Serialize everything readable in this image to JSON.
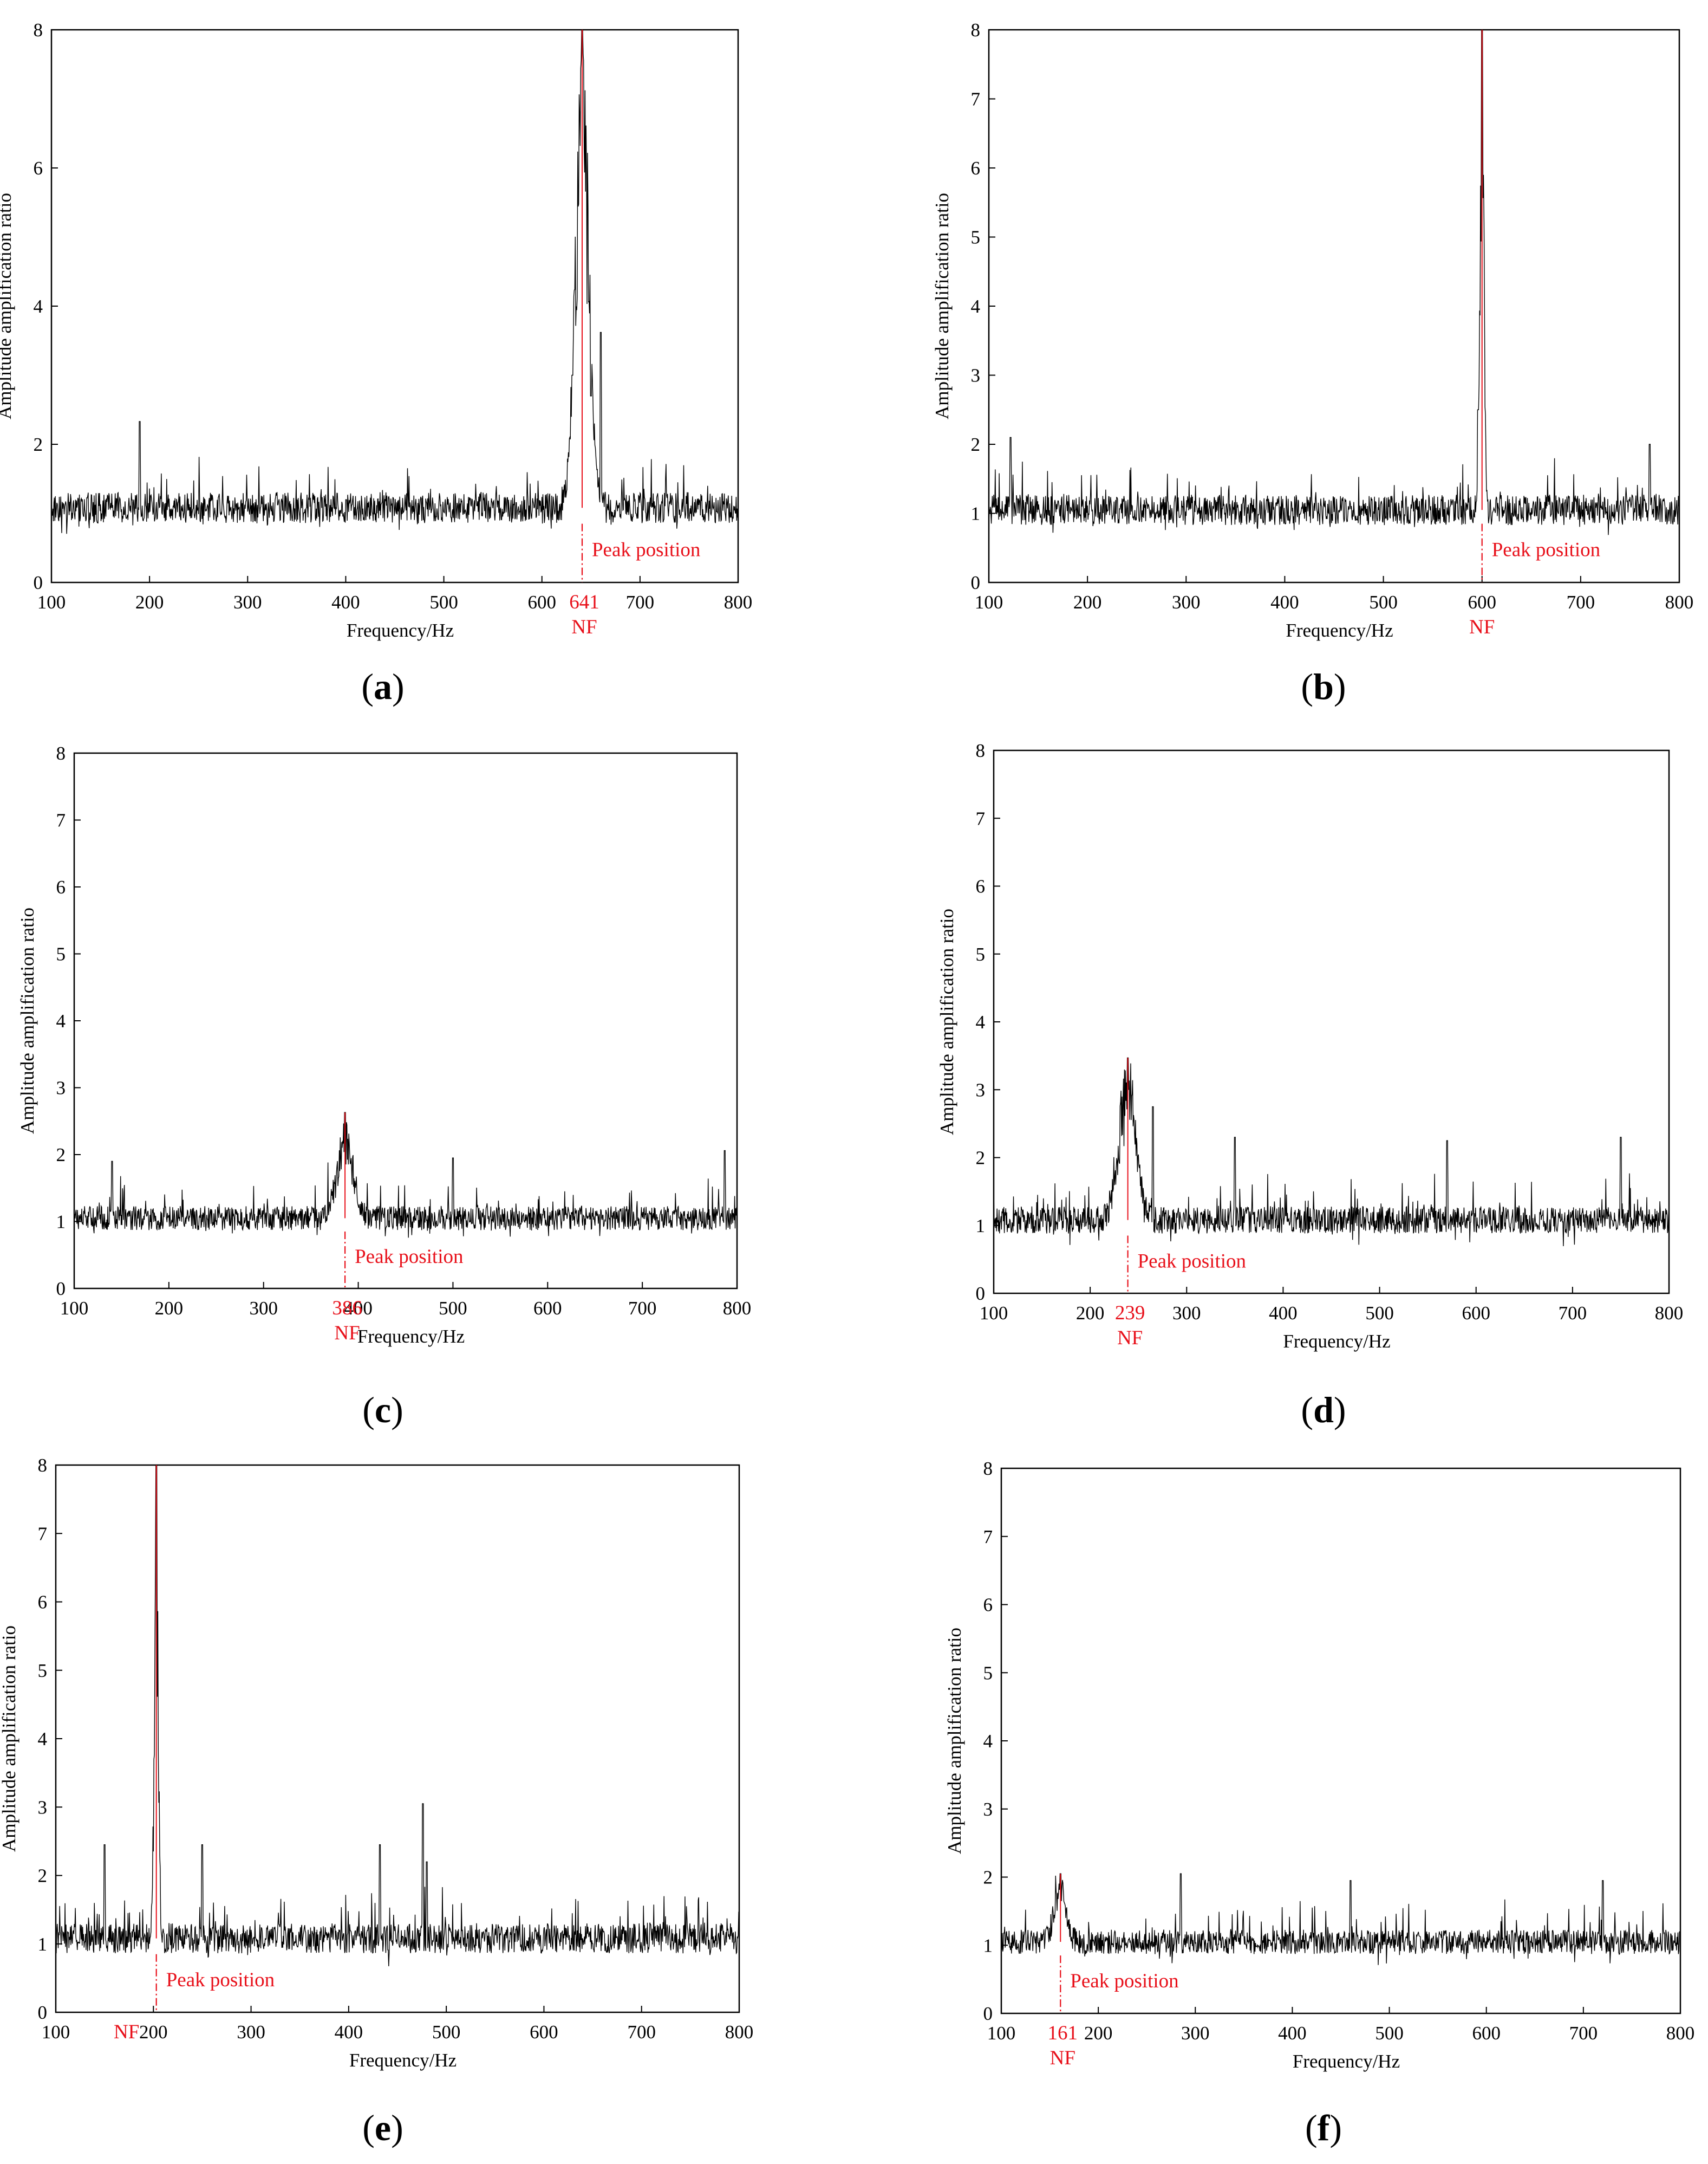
{
  "chart_data": [
    {
      "panel": "a",
      "type": "line",
      "caption": "a",
      "xlabel": "Frequency/Hz",
      "ylabel": "Amplitude amplification  ratio",
      "xlim": [
        100,
        800
      ],
      "ylim": [
        0,
        8
      ],
      "xticks": [
        100,
        200,
        300,
        400,
        500,
        600,
        700,
        800
      ],
      "yticks": [
        0,
        2,
        4,
        6,
        8
      ],
      "baseline": 1.08,
      "noise": 0.22,
      "peak": {
        "x": 641,
        "label": "641",
        "nf_label": "NF",
        "annotation": "Peak position",
        "height": 8.0,
        "width": 7
      },
      "features": [
        {
          "x": 190,
          "y": 2.33
        },
        {
          "x": 660,
          "y": 3.62
        },
        {
          "x": 631,
          "y": 3.0
        },
        {
          "x": 650,
          "y": 2.7
        }
      ]
    },
    {
      "panel": "b",
      "type": "line",
      "caption": "b",
      "xlabel": "Frequency/Hz",
      "ylabel": "Amplitude amplification  ratio",
      "xlim": [
        100,
        800
      ],
      "ylim": [
        0,
        8
      ],
      "xticks": [
        100,
        200,
        300,
        400,
        500,
        600,
        700,
        800
      ],
      "yticks": [
        0,
        1,
        2,
        3,
        4,
        5,
        6,
        7,
        8
      ],
      "baseline": 1.05,
      "noise": 0.22,
      "peak": {
        "x": 600,
        "label": "",
        "nf_label": "NF",
        "annotation": "Peak position",
        "height": 8.0,
        "width": 2
      },
      "features": [
        {
          "x": 122,
          "y": 2.1
        },
        {
          "x": 596,
          "y": 2.5
        },
        {
          "x": 770,
          "y": 2.0
        }
      ]
    },
    {
      "panel": "c",
      "type": "line",
      "caption": "c",
      "xlabel": "Frequency/Hz",
      "ylabel": "Amplitude amplification  ratio",
      "xlim": [
        100,
        800
      ],
      "ylim": [
        0,
        8
      ],
      "xticks": [
        100,
        200,
        300,
        400,
        500,
        600,
        700,
        800
      ],
      "yticks": [
        0,
        1,
        2,
        3,
        4,
        5,
        6,
        7,
        8
      ],
      "baseline": 1.05,
      "noise": 0.18,
      "peak": {
        "x": 386,
        "label": "386",
        "nf_label": "NF",
        "annotation": "Peak position",
        "height": 2.63,
        "width": 8
      },
      "features": [
        {
          "x": 500,
          "y": 1.95
        },
        {
          "x": 787,
          "y": 2.06
        },
        {
          "x": 140,
          "y": 1.9
        }
      ]
    },
    {
      "panel": "d",
      "type": "line",
      "caption": "d",
      "xlabel": "Frequency/Hz",
      "ylabel": "Amplitude amplification  ratio",
      "xlim": [
        100,
        800
      ],
      "ylim": [
        0,
        8
      ],
      "xticks": [
        100,
        200,
        300,
        400,
        500,
        600,
        700,
        800
      ],
      "yticks": [
        0,
        1,
        2,
        3,
        4,
        5,
        6,
        7,
        8
      ],
      "baseline": 1.08,
      "noise": 0.2,
      "peak": {
        "x": 239,
        "label": "239",
        "nf_label": "NF",
        "annotation": "Peak position",
        "height": 3.47,
        "width": 9
      },
      "features": [
        {
          "x": 265,
          "y": 2.75
        },
        {
          "x": 350,
          "y": 2.3
        },
        {
          "x": 570,
          "y": 2.25
        },
        {
          "x": 750,
          "y": 2.3
        }
      ]
    },
    {
      "panel": "e",
      "type": "line",
      "caption": "e",
      "xlabel": "Frequency/Hz",
      "ylabel": "Amplitude amplification  ratio",
      "xlim": [
        100,
        800
      ],
      "ylim": [
        0,
        8
      ],
      "xticks": [
        100,
        200,
        300,
        400,
        500,
        600,
        700,
        800
      ],
      "yticks": [
        0,
        1,
        2,
        3,
        4,
        5,
        6,
        7,
        8
      ],
      "baseline": 1.08,
      "noise": 0.22,
      "peak": {
        "x": 203,
        "label": "",
        "nf_label": "NF",
        "annotation": "Peak position",
        "height": 8.0,
        "width": 2
      },
      "features": [
        {
          "x": 150,
          "y": 2.45
        },
        {
          "x": 250,
          "y": 2.45
        },
        {
          "x": 432,
          "y": 2.45
        },
        {
          "x": 476,
          "y": 3.05
        },
        {
          "x": 480,
          "y": 2.2
        }
      ]
    },
    {
      "panel": "f",
      "type": "line",
      "caption": "f",
      "xlabel": "Frequency/Hz",
      "ylabel": "Amplitude amplification  ratio",
      "xlim": [
        100,
        800
      ],
      "ylim": [
        0,
        8
      ],
      "xticks": [
        100,
        200,
        300,
        400,
        500,
        600,
        700,
        800
      ],
      "yticks": [
        0,
        1,
        2,
        3,
        4,
        5,
        6,
        7,
        8
      ],
      "baseline": 1.05,
      "noise": 0.18,
      "peak": {
        "x": 161,
        "label": "161",
        "nf_label": "NF",
        "annotation": "Peak position",
        "height": 2.05,
        "width": 6
      },
      "features": [
        {
          "x": 285,
          "y": 2.05
        },
        {
          "x": 460,
          "y": 1.95
        },
        {
          "x": 720,
          "y": 1.95
        }
      ]
    }
  ]
}
